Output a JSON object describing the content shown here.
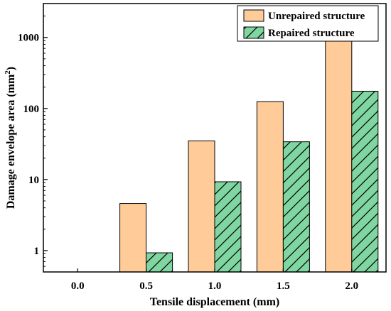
{
  "chart_data": {
    "type": "bar",
    "xlabel": "Tensile displacement (mm)",
    "ylabel": "Damage envelope area (mm",
    "ylabel_sup": "2",
    "ylabel_close": ")",
    "yscale": "log",
    "ylim": [
      0.5,
      3000
    ],
    "yticks": [
      1,
      10,
      100,
      1000
    ],
    "ytick_labels": [
      "1",
      "10",
      "100",
      "1000"
    ],
    "categories": [
      "0.0",
      "0.5",
      "1.0",
      "1.5",
      "2.0"
    ],
    "series": [
      {
        "name": "Unrepaired structure",
        "values": [
          0,
          4.6,
          35,
          125,
          920
        ],
        "color": "#FFCC99",
        "hatch": false
      },
      {
        "name": "Repaired structure",
        "values": [
          0,
          0.93,
          9.3,
          34,
          175
        ],
        "color": "#7FD6A0",
        "hatch": true
      }
    ],
    "legend_position": "top-right",
    "grid": false
  }
}
